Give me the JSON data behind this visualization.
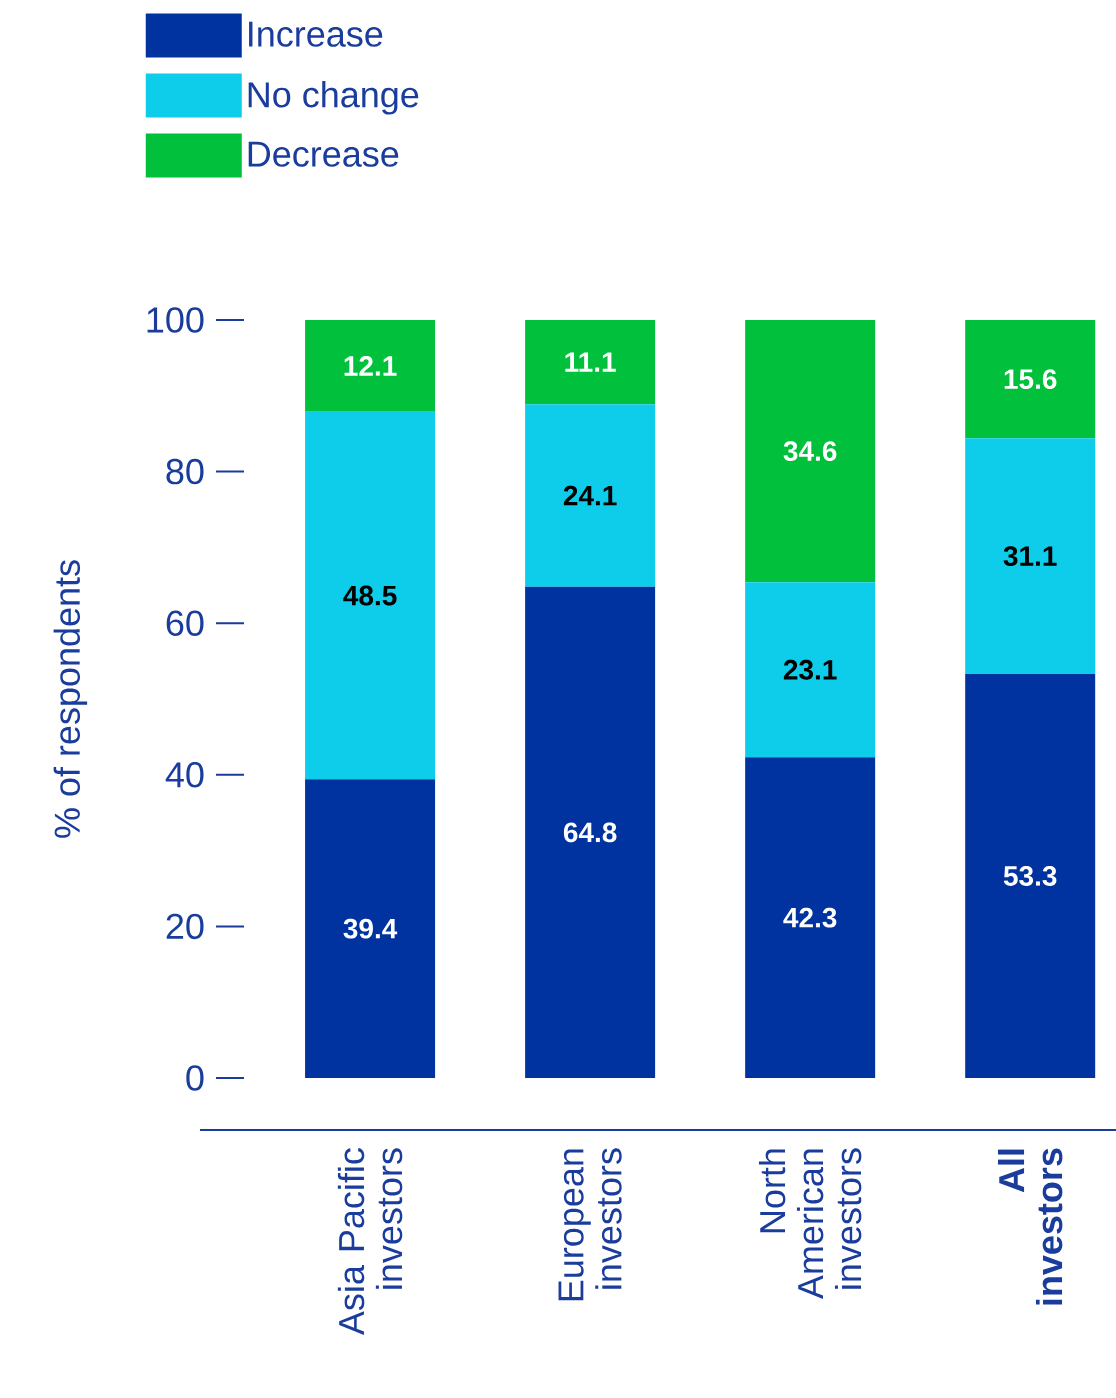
{
  "chart_data": {
    "type": "bar",
    "stacked": true,
    "ylabel": "% of respondents",
    "categories": [
      "Asia Pacific investors",
      "European investors",
      "North American investors",
      "**All investors**"
    ],
    "series": [
      {
        "name": "Increase",
        "color": "#0033a0",
        "values": [
          39.4,
          64.8,
          42.3,
          53.3
        ]
      },
      {
        "name": "No change",
        "color": "#0ecdea",
        "values": [
          48.5,
          24.1,
          23.1,
          31.1
        ]
      },
      {
        "name": "Decrease",
        "color": "#00c03c",
        "values": [
          12.1,
          11.1,
          34.6,
          15.6
        ]
      }
    ],
    "ylim": [
      0,
      100
    ],
    "yticks": [
      0,
      20,
      40,
      60,
      80,
      100
    ],
    "data_labels": true,
    "legend": "top left",
    "grid": false
  }
}
